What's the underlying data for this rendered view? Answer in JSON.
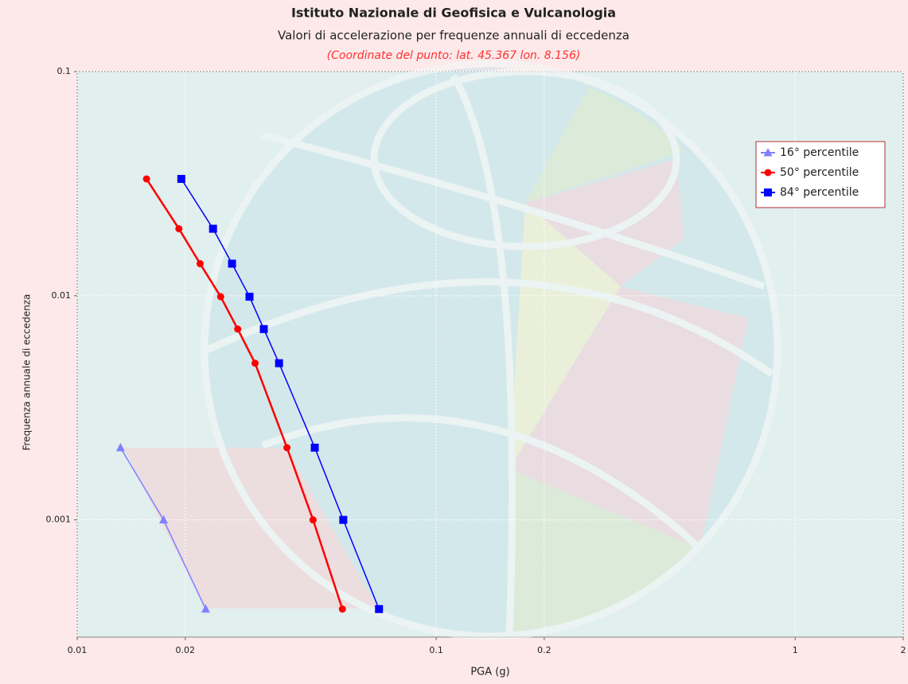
{
  "chart_data": {
    "type": "line",
    "title": "Istituto Nazionale di Geofisica e Vulcanologia",
    "subtitle": "Valori di accelerazione per frequenze annuali di eccedenza",
    "annotation": "(Coordinate del punto: lat. 45.367 lon. 8.156)",
    "x_label": "PGA (g)",
    "y_label": "Frequenza annuale di eccedenza",
    "x_log": true,
    "y_log": true,
    "grid": true,
    "legend_position": "upper-right",
    "xlim": [
      0.01,
      2
    ],
    "ylim": [
      0.0003,
      0.1
    ],
    "xticks": [
      0.01,
      0.02,
      0.1,
      0.2,
      1,
      2
    ],
    "yticks": [
      0.1,
      0.01,
      0.001
    ],
    "series": [
      {
        "name": "16° percentile",
        "color": "#8080ff",
        "marker": "triangle",
        "x": [
          0.0132,
          0.0174,
          0.0228
        ],
        "values": [
          0.0021,
          0.001,
          0.0004
        ]
      },
      {
        "name": "50° percentile",
        "color": "#ff0000",
        "marker": "circle",
        "x": [
          0.0156,
          0.0192,
          0.022,
          0.0251,
          0.028,
          0.0313,
          0.0384,
          0.0454,
          0.0548
        ],
        "values": [
          0.0332,
          0.0199,
          0.0139,
          0.0099,
          0.0071,
          0.005,
          0.0021,
          0.001,
          0.0004
        ]
      },
      {
        "name": "84° percentile",
        "color": "#0000ff",
        "marker": "square",
        "x": [
          0.0195,
          0.0239,
          0.027,
          0.0302,
          0.0331,
          0.0365,
          0.0459,
          0.0551,
          0.0693
        ],
        "values": [
          0.0332,
          0.0199,
          0.0139,
          0.0099,
          0.0071,
          0.005,
          0.0021,
          0.001,
          0.0004
        ]
      }
    ]
  }
}
